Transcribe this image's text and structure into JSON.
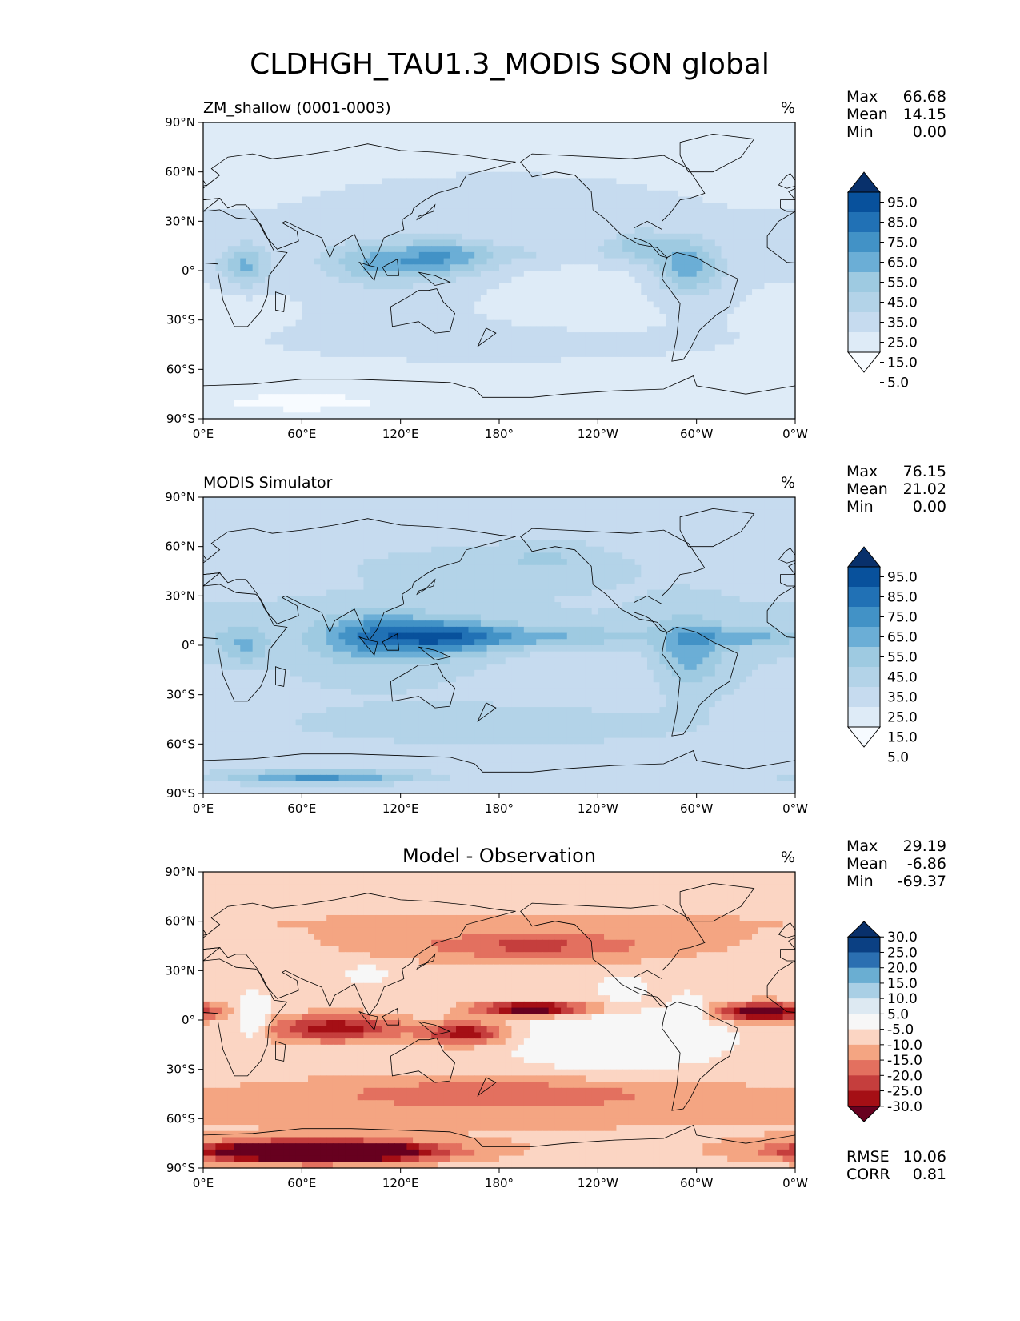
{
  "figure": {
    "title": "CLDHGH_TAU1.3_MODIS SON global"
  },
  "colors": {
    "blues": [
      "#f7fbff",
      "#deebf7",
      "#c6dbef",
      "#b3d3e8",
      "#9ecae1",
      "#6baed6",
      "#4292c6",
      "#2171b5",
      "#08519c",
      "#08306b"
    ],
    "diff": [
      "#67001f",
      "#a50f15",
      "#c53e3d",
      "#e3705f",
      "#f4a582",
      "#fbd5c3",
      "#f7f7f7",
      "#dde9f2",
      "#a9cfe5",
      "#6aaed2",
      "#2b6fb1",
      "#0b4083",
      "#08306b"
    ],
    "land": "#000000"
  },
  "chart_data": [
    {
      "type": "heatmap",
      "title": "ZM_shallow (0001-0003)",
      "units": "%",
      "xticks": [
        "0°E",
        "60°E",
        "120°E",
        "180°",
        "120°W",
        "60°W",
        "0°W"
      ],
      "yticks": [
        "90°N",
        "60°N",
        "30°N",
        "0°",
        "30°S",
        "60°S",
        "90°S"
      ],
      "stats": [
        {
          "label": "Max",
          "value": "66.68"
        },
        {
          "label": "Mean",
          "value": "14.15"
        },
        {
          "label": "Min",
          "value": "0.00"
        }
      ],
      "colorbar": {
        "levels": [
          "95.0",
          "85.0",
          "75.0",
          "65.0",
          "55.0",
          "45.0",
          "35.0",
          "25.0",
          "15.0",
          "5.0"
        ],
        "palette": "blues"
      },
      "field": {
        "name": "model",
        "max": 66.68,
        "mean": 14.15,
        "min": 0.0
      }
    },
    {
      "type": "heatmap",
      "title": "MODIS Simulator",
      "units": "%",
      "xticks": [
        "0°E",
        "60°E",
        "120°E",
        "180°",
        "120°W",
        "60°W",
        "0°W"
      ],
      "yticks": [
        "90°N",
        "60°N",
        "30°N",
        "0°",
        "30°S",
        "60°S",
        "90°S"
      ],
      "stats": [
        {
          "label": "Max",
          "value": "76.15"
        },
        {
          "label": "Mean",
          "value": "21.02"
        },
        {
          "label": "Min",
          "value": "0.00"
        }
      ],
      "colorbar": {
        "levels": [
          "95.0",
          "85.0",
          "75.0",
          "65.0",
          "55.0",
          "45.0",
          "35.0",
          "25.0",
          "15.0",
          "5.0"
        ],
        "palette": "blues"
      },
      "field": {
        "name": "obs",
        "max": 76.15,
        "mean": 21.02,
        "min": 0.0
      }
    },
    {
      "type": "heatmap",
      "title": "Model - Observation",
      "units": "%",
      "xticks": [
        "0°E",
        "60°E",
        "120°E",
        "180°",
        "120°W",
        "60°W",
        "0°W"
      ],
      "yticks": [
        "90°N",
        "60°N",
        "30°N",
        "0°",
        "30°S",
        "60°S",
        "90°S"
      ],
      "stats": [
        {
          "label": "Max",
          "value": "29.19"
        },
        {
          "label": "Mean",
          "value": "-6.86"
        },
        {
          "label": "Min",
          "value": "-69.37"
        }
      ],
      "colorbar": {
        "levels": [
          "30.0",
          "25.0",
          "20.0",
          "15.0",
          "10.0",
          "5.0",
          "-5.0",
          "-10.0",
          "-15.0",
          "-20.0",
          "-25.0",
          "-30.0"
        ],
        "palette": "diff"
      },
      "extra_stats": [
        {
          "label": "RMSE",
          "value": "10.06"
        },
        {
          "label": "CORR",
          "value": "0.81"
        }
      ],
      "field": {
        "name": "diff",
        "max": 29.19,
        "mean": -6.86,
        "min": -69.37
      }
    }
  ]
}
